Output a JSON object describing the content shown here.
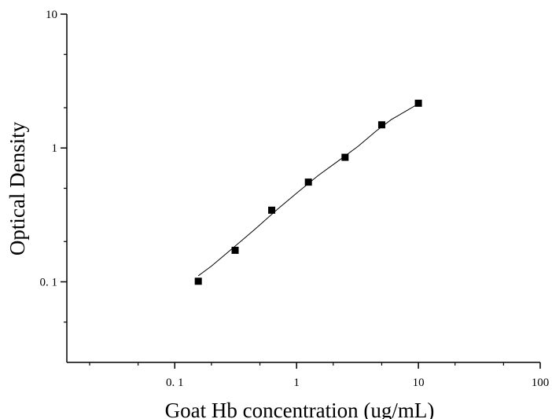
{
  "chart_data": {
    "type": "scatter",
    "title": "",
    "xlabel": "Goat Hb concentration (ug/mL)",
    "ylabel": "Optical Density",
    "x_scale": "log",
    "y_scale": "log",
    "xlim": [
      0.013,
      100
    ],
    "ylim": [
      0.025,
      10
    ],
    "x_ticks": [
      {
        "value": 0.1,
        "label": "0. 1"
      },
      {
        "value": 1,
        "label": "1"
      },
      {
        "value": 10,
        "label": "10"
      },
      {
        "value": 100,
        "label": "100"
      }
    ],
    "y_ticks": [
      {
        "value": 0.1,
        "label": "0. 1"
      },
      {
        "value": 1,
        "label": "1"
      },
      {
        "value": 10,
        "label": "10"
      }
    ],
    "grid": false,
    "marker": "square",
    "series": [
      {
        "points": [
          {
            "x": 0.156,
            "y": 0.101
          },
          {
            "x": 0.313,
            "y": 0.172
          },
          {
            "x": 0.625,
            "y": 0.343
          },
          {
            "x": 1.25,
            "y": 0.556
          },
          {
            "x": 2.5,
            "y": 0.852
          },
          {
            "x": 5,
            "y": 1.49
          },
          {
            "x": 10,
            "y": 2.16
          }
        ],
        "fit_curve": [
          {
            "x": 0.156,
            "y": 0.111
          },
          {
            "x": 0.2,
            "y": 0.131
          },
          {
            "x": 0.3,
            "y": 0.179
          },
          {
            "x": 0.45,
            "y": 0.245
          },
          {
            "x": 0.7,
            "y": 0.35
          },
          {
            "x": 1.0,
            "y": 0.46
          },
          {
            "x": 1.5,
            "y": 0.622
          },
          {
            "x": 2.2,
            "y": 0.8
          },
          {
            "x": 3.2,
            "y": 1.03
          },
          {
            "x": 4.5,
            "y": 1.34
          },
          {
            "x": 6.0,
            "y": 1.63
          },
          {
            "x": 8.0,
            "y": 1.9
          },
          {
            "x": 10,
            "y": 2.14
          }
        ]
      }
    ]
  }
}
